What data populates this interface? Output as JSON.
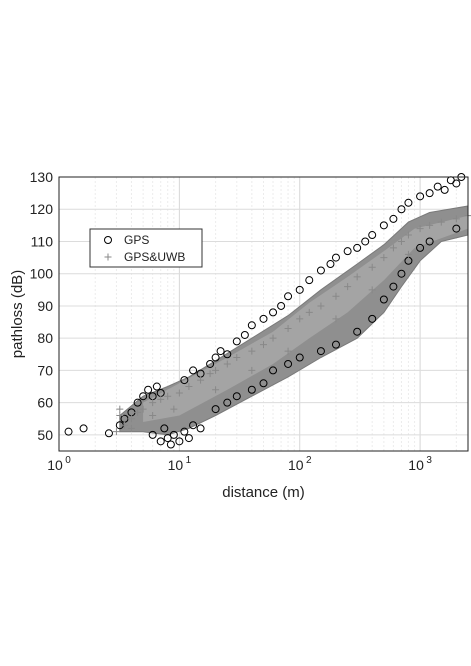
{
  "chart_data": {
    "type": "scatter",
    "xlabel": "distance (m)",
    "ylabel": "pathloss (dB)",
    "xscale": "log",
    "xlim": [
      1,
      2500
    ],
    "ylim": [
      45,
      130
    ],
    "grid": true,
    "legend_placement": "upper-left",
    "x_tick_labels": [
      {
        "value": 1,
        "base": "10",
        "exp": "0"
      },
      {
        "value": 10,
        "base": "10",
        "exp": "1"
      },
      {
        "value": 100,
        "base": "10",
        "exp": "2"
      },
      {
        "value": 1000,
        "base": "10",
        "exp": "3"
      }
    ],
    "y_ticks": [
      50,
      60,
      70,
      80,
      90,
      100,
      110,
      120,
      130
    ],
    "series": [
      {
        "name": "GPS",
        "marker": "circle",
        "color": "#000000",
        "points": [
          [
            1.2,
            51
          ],
          [
            1.6,
            52
          ],
          [
            2.6,
            50.5
          ],
          [
            3.2,
            53
          ],
          [
            3.5,
            55
          ],
          [
            4,
            57
          ],
          [
            4.5,
            60
          ],
          [
            5,
            62
          ],
          [
            5.5,
            64
          ],
          [
            6,
            62
          ],
          [
            6.5,
            65
          ],
          [
            7,
            63
          ],
          [
            6,
            50
          ],
          [
            7,
            48
          ],
          [
            7.5,
            52
          ],
          [
            8,
            49
          ],
          [
            8.5,
            47
          ],
          [
            9,
            50
          ],
          [
            10,
            48
          ],
          [
            11,
            51
          ],
          [
            12,
            49
          ],
          [
            13,
            53
          ],
          [
            15,
            52
          ],
          [
            11,
            67
          ],
          [
            13,
            70
          ],
          [
            15,
            69
          ],
          [
            18,
            72
          ],
          [
            20,
            74
          ],
          [
            22,
            76
          ],
          [
            25,
            75
          ],
          [
            30,
            79
          ],
          [
            35,
            81
          ],
          [
            40,
            84
          ],
          [
            50,
            86
          ],
          [
            60,
            88
          ],
          [
            70,
            90
          ],
          [
            80,
            93
          ],
          [
            100,
            95
          ],
          [
            120,
            98
          ],
          [
            150,
            101
          ],
          [
            180,
            103
          ],
          [
            200,
            105
          ],
          [
            250,
            107
          ],
          [
            300,
            108
          ],
          [
            350,
            110
          ],
          [
            400,
            112
          ],
          [
            500,
            115
          ],
          [
            600,
            117
          ],
          [
            700,
            120
          ],
          [
            800,
            122
          ],
          [
            1000,
            124
          ],
          [
            1200,
            125
          ],
          [
            1400,
            127
          ],
          [
            1600,
            126
          ],
          [
            1800,
            129
          ],
          [
            2000,
            128
          ],
          [
            2200,
            130
          ],
          [
            20,
            58
          ],
          [
            25,
            60
          ],
          [
            30,
            62
          ],
          [
            40,
            64
          ],
          [
            50,
            66
          ],
          [
            60,
            70
          ],
          [
            80,
            72
          ],
          [
            100,
            74
          ],
          [
            150,
            76
          ],
          [
            200,
            78
          ],
          [
            300,
            82
          ],
          [
            400,
            86
          ],
          [
            500,
            92
          ],
          [
            600,
            96
          ],
          [
            700,
            100
          ],
          [
            800,
            104
          ],
          [
            1000,
            108
          ],
          [
            1200,
            110
          ],
          [
            2000,
            114
          ]
        ]
      },
      {
        "name": "GPS&UWB",
        "marker": "plus",
        "color": "#888888",
        "points": [
          [
            3,
            51
          ],
          [
            3.5,
            53
          ],
          [
            4,
            55
          ],
          [
            4.5,
            57
          ],
          [
            5,
            58
          ],
          [
            6,
            60
          ],
          [
            7,
            61
          ],
          [
            8,
            62
          ],
          [
            10,
            63
          ],
          [
            12,
            65
          ],
          [
            15,
            67
          ],
          [
            18,
            69
          ],
          [
            20,
            70
          ],
          [
            25,
            72
          ],
          [
            30,
            74
          ],
          [
            40,
            76
          ],
          [
            50,
            78
          ],
          [
            60,
            80
          ],
          [
            80,
            83
          ],
          [
            100,
            86
          ],
          [
            120,
            88
          ],
          [
            150,
            90
          ],
          [
            200,
            93
          ],
          [
            250,
            96
          ],
          [
            300,
            99
          ],
          [
            400,
            102
          ],
          [
            500,
            105
          ],
          [
            600,
            108
          ],
          [
            700,
            110
          ],
          [
            800,
            112
          ],
          [
            1000,
            114
          ],
          [
            1200,
            115
          ],
          [
            1500,
            116
          ],
          [
            2000,
            117
          ],
          [
            2500,
            118
          ],
          [
            3.2,
            56
          ],
          [
            3.2,
            58
          ],
          [
            4,
            52
          ],
          [
            6,
            56
          ],
          [
            9,
            58
          ],
          [
            20,
            64
          ],
          [
            40,
            70
          ],
          [
            80,
            76
          ],
          [
            200,
            86
          ],
          [
            400,
            95
          ],
          [
            800,
            106
          ]
        ]
      }
    ]
  }
}
